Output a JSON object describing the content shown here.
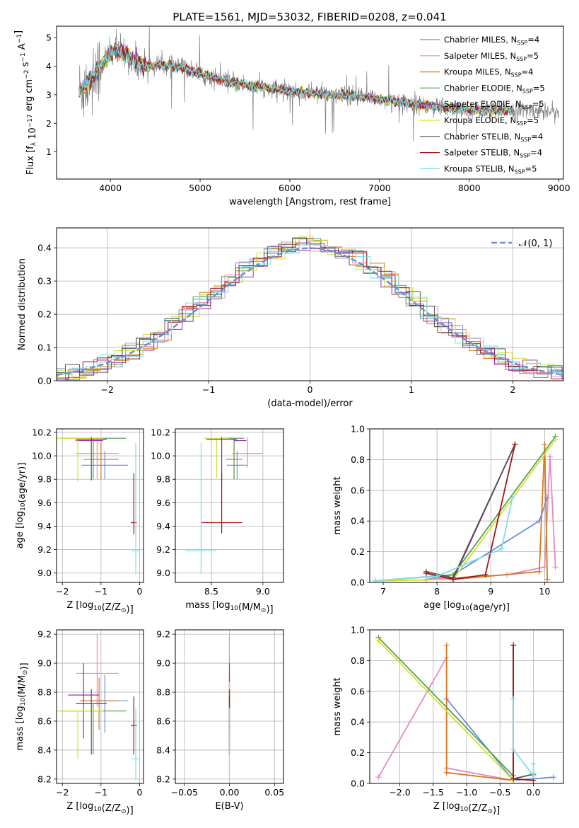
{
  "figure": {
    "title": "PLATE=1561, MJD=53032, FIBERID=0208, z=0.041"
  },
  "models": [
    {
      "name": "Chabrier MILES",
      "nssp": "4",
      "color": "#6a8ed8"
    },
    {
      "name": "Salpeter MILES",
      "nssp": "5",
      "color": "#e48ac0"
    },
    {
      "name": "Kroupa MILES",
      "nssp": "4",
      "color": "#d9781e"
    },
    {
      "name": "Chabrier ELODIE",
      "nssp": "5",
      "color": "#55a255"
    },
    {
      "name": "Salpeter ELODIE",
      "nssp": "5",
      "color": "#9b2fae"
    },
    {
      "name": "Kroupa ELODIE",
      "nssp": "5",
      "color": "#d6e02a"
    },
    {
      "name": "Chabrier STELIB",
      "nssp": "4",
      "color": "#555555"
    },
    {
      "name": "Salpeter STELIB",
      "nssp": "4",
      "color": "#a31515"
    },
    {
      "name": "Kroupa STELIB",
      "nssp": "5",
      "color": "#7ddfe4"
    }
  ],
  "chart_data": [
    {
      "id": "spectrum",
      "type": "line",
      "xlabel": "wavelength [Angstrom, rest frame]",
      "ylabel": "Flux [f_λ 10^-17 erg cm^-2 s^-1 A^-1]",
      "xlim": [
        3400,
        9050
      ],
      "ylim": [
        0.05,
        5.4
      ],
      "xticks": [
        4000,
        5000,
        6000,
        7000,
        8000,
        9000
      ],
      "yticks": [
        1,
        2,
        3,
        4,
        5
      ],
      "grid": false,
      "legend": "right",
      "data_color": "#808080",
      "continuum": {
        "x": [
          3650,
          3750,
          3850,
          3950,
          4050,
          4150,
          4250,
          4400,
          4600,
          4800,
          5000,
          5200,
          5500,
          5800,
          6100,
          6400,
          6700,
          7000,
          7300,
          7600,
          7900,
          8200
        ],
        "y": [
          3.1,
          3.4,
          3.8,
          4.3,
          4.6,
          4.45,
          4.25,
          4.0,
          4.05,
          3.95,
          3.75,
          3.55,
          3.35,
          3.2,
          3.1,
          3.0,
          2.95,
          2.85,
          2.7,
          2.6,
          2.5,
          2.45
        ]
      }
    },
    {
      "id": "residuals",
      "type": "histogram",
      "xlabel": "(data-model)/error",
      "ylabel": "Normed distribution",
      "xlim": [
        -2.5,
        2.5
      ],
      "ylim": [
        0,
        0.46
      ],
      "xticks": [
        -2,
        -1,
        0,
        1,
        2
      ],
      "yticks": [
        0.0,
        0.1,
        0.2,
        0.3,
        0.4
      ],
      "grid": true,
      "legend": "top-right",
      "reference": {
        "label": "𝒩(0, 1)",
        "mean": 0,
        "sigma": 1,
        "color": "#6a8ed8"
      }
    },
    {
      "id": "age_vs_Z",
      "type": "scatter",
      "xlabel": "Z [log10(Z/Z☉)]",
      "ylabel": "age  [log10(age/yr)]",
      "xlim": [
        -2.15,
        0.1
      ],
      "ylim": [
        8.92,
        10.23
      ],
      "xticks": [
        -2,
        -1,
        0
      ],
      "yticks": [
        9.0,
        9.2,
        9.4,
        9.6,
        9.8,
        10.0,
        10.2
      ],
      "grid": true,
      "points": [
        {
          "x": -0.9,
          "y": 9.92,
          "xerr": 0.6,
          "yerr": [
            0.12,
            0.12
          ],
          "model": 0
        },
        {
          "x": -1.1,
          "y": 10.02,
          "xerr": 0.55,
          "yerr": [
            0.22,
            0.14
          ],
          "model": 1
        },
        {
          "x": -1.0,
          "y": 9.97,
          "xerr": 0.45,
          "yerr": [
            0.17,
            0.18
          ],
          "model": 2
        },
        {
          "x": -1.2,
          "y": 10.15,
          "xerr": 0.85,
          "yerr": [
            0.35,
            0.0
          ],
          "model": 3
        },
        {
          "x": -1.3,
          "y": 10.13,
          "xerr": 0.35,
          "yerr": [
            0.0,
            0.0
          ],
          "model": 4
        },
        {
          "x": -1.6,
          "y": 10.15,
          "xerr": 0.65,
          "yerr": [
            0.37,
            0.0
          ],
          "model": 5
        },
        {
          "x": -1.25,
          "y": 10.14,
          "xerr": 0.4,
          "yerr": [
            0.35,
            0.02
          ],
          "model": 6
        },
        {
          "x": -0.15,
          "y": 9.43,
          "xerr": 0.08,
          "yerr": [
            0.1,
            0.42
          ],
          "model": 7
        },
        {
          "x": -0.1,
          "y": 9.19,
          "xerr": 0.12,
          "yerr": [
            0.2,
            0.92
          ],
          "model": 8
        }
      ]
    },
    {
      "id": "age_vs_mass",
      "type": "scatter",
      "xlabel": "mass [log10(M/M☉)]",
      "ylabel": "",
      "xlim": [
        8.15,
        9.2
      ],
      "ylim": [
        8.92,
        10.23
      ],
      "xticks": [
        8.5,
        9.0
      ],
      "yticks": [
        9.0,
        9.2,
        9.4,
        9.6,
        9.8,
        10.0,
        10.2
      ],
      "grid": true,
      "points": [
        {
          "x": 8.75,
          "y": 9.92,
          "xerr": 0.1,
          "yerr": [
            0.12,
            0.12
          ],
          "model": 0
        },
        {
          "x": 8.85,
          "y": 10.02,
          "xerr": 0.15,
          "yerr": [
            0.12,
            0.14
          ],
          "model": 1
        },
        {
          "x": 8.72,
          "y": 9.97,
          "xerr": 0.08,
          "yerr": [
            0.17,
            0.17
          ],
          "model": 2
        },
        {
          "x": 8.72,
          "y": 10.15,
          "xerr": 0.1,
          "yerr": [
            0.35,
            0.0
          ],
          "model": 3
        },
        {
          "x": 8.78,
          "y": 10.13,
          "xerr": 0.06,
          "yerr": [
            0.0,
            0.0
          ],
          "model": 4
        },
        {
          "x": 8.55,
          "y": 10.15,
          "xerr": 0.12,
          "yerr": [
            0.34,
            0.0
          ],
          "model": 5
        },
        {
          "x": 8.6,
          "y": 10.14,
          "xerr": 0.15,
          "yerr": [
            0.35,
            0.02
          ],
          "model": 6
        },
        {
          "x": 8.6,
          "y": 9.43,
          "xerr": 0.2,
          "yerr": [
            0.09,
            0.42
          ],
          "model": 7
        },
        {
          "x": 8.4,
          "y": 9.19,
          "xerr": 0.15,
          "yerr": [
            0.2,
            0.92
          ],
          "model": 8
        }
      ]
    },
    {
      "id": "weight_vs_age",
      "type": "line",
      "xlabel": "age  [log10(age/yr)]",
      "ylabel": "mass weight",
      "xlim": [
        6.75,
        10.35
      ],
      "ylim": [
        0,
        1.0
      ],
      "xticks": [
        7,
        8,
        9,
        10
      ],
      "yticks": [
        0.0,
        0.2,
        0.4,
        0.6,
        0.8,
        1.0
      ],
      "grid": true,
      "series": [
        {
          "model": 0,
          "x": [
            7.8,
            8.3,
            9.9,
            10.05
          ],
          "y": [
            0.02,
            0.05,
            0.4,
            0.55
          ]
        },
        {
          "model": 1,
          "x": [
            7.8,
            9.3,
            10.0,
            10.1,
            10.2
          ],
          "y": [
            0.02,
            0.05,
            0.1,
            0.82,
            0.1
          ]
        },
        {
          "model": 2,
          "x": [
            8.3,
            9.9,
            10.0,
            10.05
          ],
          "y": [
            0.02,
            0.07,
            0.9,
            0.02
          ]
        },
        {
          "model": 3,
          "x": [
            6.85,
            8.3,
            10.2
          ],
          "y": [
            0.01,
            0.05,
            0.95
          ]
        },
        {
          "model": 4,
          "x": [
            7.8,
            8.3,
            9.45
          ],
          "y": [
            0.06,
            0.02,
            0.9
          ]
        },
        {
          "model": 5,
          "x": [
            6.85,
            8.3,
            10.2
          ],
          "y": [
            0.01,
            0.02,
            0.93
          ]
        },
        {
          "model": 6,
          "x": [
            7.8,
            8.3,
            9.45
          ],
          "y": [
            0.07,
            0.03,
            0.9
          ]
        },
        {
          "model": 7,
          "x": [
            7.8,
            8.3,
            8.9,
            9.45
          ],
          "y": [
            0.06,
            0.02,
            0.05,
            0.9
          ]
        },
        {
          "model": 8,
          "x": [
            6.85,
            8.0,
            9.2,
            9.4
          ],
          "y": [
            0.01,
            0.04,
            0.22,
            0.55
          ]
        }
      ]
    },
    {
      "id": "mass_vs_Z",
      "type": "scatter",
      "xlabel": "Z [log10(Z/Z☉)]",
      "ylabel": "mass [log10(M/M☉)]",
      "xlim": [
        -2.15,
        0.1
      ],
      "ylim": [
        8.17,
        9.23
      ],
      "xticks": [
        -2,
        -1,
        0
      ],
      "yticks": [
        8.2,
        8.4,
        8.6,
        8.8,
        9.0,
        9.2
      ],
      "grid": true,
      "points": [
        {
          "x": -0.9,
          "y": 8.74,
          "xerr": 0.6,
          "yerr": [
            0.22,
            0.18
          ],
          "model": 0
        },
        {
          "x": -1.1,
          "y": 8.93,
          "xerr": 0.55,
          "yerr": [
            0.23,
            0.27
          ],
          "model": 1
        },
        {
          "x": -1.05,
          "y": 8.74,
          "xerr": 0.5,
          "yerr": [
            0.2,
            0.16
          ],
          "model": 2
        },
        {
          "x": -1.2,
          "y": 8.67,
          "xerr": 0.85,
          "yerr": [
            0.3,
            0.05
          ],
          "model": 3
        },
        {
          "x": -1.45,
          "y": 8.78,
          "xerr": 0.4,
          "yerr": [
            0.3,
            0.22
          ],
          "model": 4
        },
        {
          "x": -1.6,
          "y": 8.67,
          "xerr": 0.65,
          "yerr": [
            0.33,
            0.0
          ],
          "model": 5
        },
        {
          "x": -1.25,
          "y": 8.72,
          "xerr": 0.4,
          "yerr": [
            0.35,
            0.1
          ],
          "model": 6
        },
        {
          "x": -0.15,
          "y": 8.57,
          "xerr": 0.08,
          "yerr": [
            0.2,
            0.2
          ],
          "model": 7
        },
        {
          "x": -0.1,
          "y": 8.34,
          "xerr": 0.12,
          "yerr": [
            0.15,
            0.35
          ],
          "model": 8
        }
      ]
    },
    {
      "id": "mass_vs_ebv",
      "type": "scatter",
      "xlabel": "E(B-V)",
      "ylabel": "",
      "xlim": [
        -0.06,
        0.06
      ],
      "ylim": [
        8.17,
        9.23
      ],
      "xticks": [
        -0.05,
        0.0,
        0.05
      ],
      "xticklabels": [
        "−0.05",
        "0.00",
        "0.05"
      ],
      "yticks": [
        8.2,
        8.4,
        8.6,
        8.8,
        9.0,
        9.2
      ],
      "grid": true,
      "points": [
        {
          "x": 0.0,
          "y": 8.74,
          "yerr": [
            0.22,
            0.18
          ],
          "model": 0
        },
        {
          "x": 0.0,
          "y": 8.93,
          "yerr": [
            0.23,
            0.26
          ],
          "model": 1
        },
        {
          "x": 0.0,
          "y": 8.74,
          "yerr": [
            0.2,
            0.16
          ],
          "model": 2
        },
        {
          "x": 0.0,
          "y": 8.67,
          "yerr": [
            0.3,
            0.05
          ],
          "model": 3
        },
        {
          "x": 0.0,
          "y": 8.78,
          "yerr": [
            0.3,
            0.22
          ],
          "model": 4
        },
        {
          "x": 0.0,
          "y": 8.67,
          "yerr": [
            0.33,
            0.2
          ],
          "model": 5
        },
        {
          "x": 0.0,
          "y": 8.72,
          "yerr": [
            0.35,
            0.1
          ],
          "model": 6
        },
        {
          "x": 0.0,
          "y": 8.57,
          "yerr": [
            0.2,
            0.2
          ],
          "model": 7
        },
        {
          "x": 0.0,
          "y": 8.34,
          "yerr": [
            0.15,
            0.35
          ],
          "model": 8
        }
      ]
    },
    {
      "id": "weight_vs_Z",
      "type": "line",
      "xlabel": "Z [log10(Z/Z☉)]",
      "ylabel": "mass weight",
      "xlim": [
        -2.45,
        0.45
      ],
      "ylim": [
        0,
        1.0
      ],
      "xticks": [
        -2.0,
        -1.5,
        -1.0,
        -0.5,
        0.0
      ],
      "xticklabels": [
        "−2.0",
        "−1.5",
        "−1.0",
        "−0.5",
        "0.0"
      ],
      "yticks": [
        0.0,
        0.2,
        0.4,
        0.6,
        0.8,
        1.0
      ],
      "grid": true,
      "series": [
        {
          "model": 0,
          "x": [
            -1.3,
            -0.3,
            0.3
          ],
          "y": [
            0.55,
            0.02,
            0.04
          ]
        },
        {
          "model": 1,
          "x": [
            -2.32,
            -1.3,
            -1.3,
            -0.3,
            -0.3
          ],
          "y": [
            0.04,
            0.82,
            0.1,
            0.02,
            0.05
          ]
        },
        {
          "model": 2,
          "x": [
            -1.3,
            -1.3,
            -0.3,
            -0.3
          ],
          "y": [
            0.9,
            0.07,
            0.02,
            0.03
          ]
        },
        {
          "model": 3,
          "x": [
            -2.32,
            -0.3
          ],
          "y": [
            0.95,
            0.05
          ]
        },
        {
          "model": 4,
          "x": [
            -0.3,
            -0.3
          ],
          "y": [
            0.9,
            0.03
          ]
        },
        {
          "model": 5,
          "x": [
            -2.32,
            -0.3
          ],
          "y": [
            0.93,
            0.02
          ]
        },
        {
          "model": 6,
          "x": [
            -0.3,
            -0.3,
            0.0
          ],
          "y": [
            0.9,
            0.03,
            0.06
          ]
        },
        {
          "model": 7,
          "x": [
            -0.3,
            -0.3,
            0.0
          ],
          "y": [
            0.9,
            0.03,
            0.02
          ]
        },
        {
          "model": 8,
          "x": [
            -0.3,
            -0.3,
            0.0,
            0.0
          ],
          "y": [
            0.55,
            0.22,
            0.05,
            0.13
          ]
        }
      ]
    }
  ]
}
